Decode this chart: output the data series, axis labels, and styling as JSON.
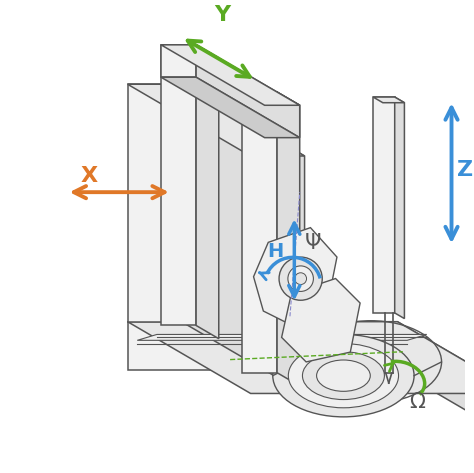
{
  "bg": "#ffffff",
  "lc": "#555555",
  "fc_front": "#f2f2f2",
  "fc_side": "#dedede",
  "fc_top": "#e8e8e8",
  "fc_dark": "#cccccc",
  "orange": "#e07828",
  "green": "#5aaa22",
  "blue": "#3a8fd8",
  "label_x": "X",
  "label_y": "Y",
  "label_z": "Z",
  "label_h": "H",
  "label_psi": "Ψ",
  "label_omega": "Ω",
  "fs": 16,
  "figsize": [
    4.74,
    4.73
  ]
}
